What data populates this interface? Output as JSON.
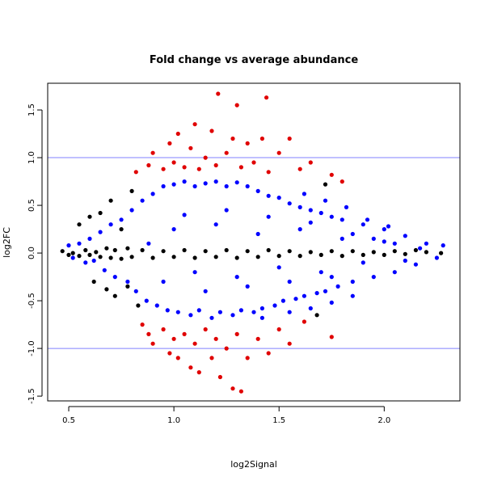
{
  "chart_data": {
    "type": "scatter",
    "title": "Fold change vs average abundance",
    "xlabel": "log2Signal",
    "ylabel": "log2FC",
    "xlim": [
      0.4,
      2.36
    ],
    "ylim": [
      -1.55,
      1.78
    ],
    "x_ticks": [
      {
        "value": 0.5,
        "label": "0.5"
      },
      {
        "value": 1.0,
        "label": "1.0"
      },
      {
        "value": 1.5,
        "label": "1.5"
      },
      {
        "value": 2.0,
        "label": "2.0"
      }
    ],
    "y_ticks": [
      {
        "value": -1.5,
        "label": "-1.5"
      },
      {
        "value": -1.0,
        "label": "-1.0"
      },
      {
        "value": -0.5,
        "label": "-0.5"
      },
      {
        "value": 0.0,
        "label": "0.0"
      },
      {
        "value": 0.5,
        "label": "0.5"
      },
      {
        "value": 1.0,
        "label": "1.0"
      },
      {
        "value": 1.5,
        "label": "1.5"
      }
    ],
    "reference_lines": [
      {
        "y": 1.0,
        "color": "#8080ff"
      },
      {
        "y": -1.0,
        "color": "#8080ff"
      }
    ],
    "grid": false,
    "legend": false,
    "series": [
      {
        "color": "#0000ff",
        "points": [
          [
            0.5,
            0.08
          ],
          [
            0.52,
            -0.05
          ],
          [
            0.55,
            0.1
          ],
          [
            0.58,
            -0.1
          ],
          [
            0.6,
            0.15
          ],
          [
            0.62,
            -0.08
          ],
          [
            0.65,
            0.22
          ],
          [
            0.67,
            -0.18
          ],
          [
            0.7,
            0.3
          ],
          [
            0.72,
            -0.25
          ],
          [
            0.75,
            0.35
          ],
          [
            0.78,
            -0.3
          ],
          [
            0.8,
            0.45
          ],
          [
            0.82,
            -0.4
          ],
          [
            0.85,
            0.55
          ],
          [
            0.87,
            -0.5
          ],
          [
            0.9,
            0.62
          ],
          [
            0.92,
            -0.55
          ],
          [
            0.95,
            0.7
          ],
          [
            0.97,
            -0.6
          ],
          [
            1.0,
            0.72
          ],
          [
            1.02,
            -0.62
          ],
          [
            1.05,
            0.75
          ],
          [
            1.08,
            -0.65
          ],
          [
            1.1,
            0.7
          ],
          [
            1.12,
            -0.6
          ],
          [
            1.15,
            0.73
          ],
          [
            1.18,
            -0.68
          ],
          [
            1.2,
            0.75
          ],
          [
            1.22,
            -0.62
          ],
          [
            1.25,
            0.7
          ],
          [
            1.28,
            -0.65
          ],
          [
            1.3,
            0.74
          ],
          [
            1.32,
            -0.6
          ],
          [
            1.35,
            0.7
          ],
          [
            1.38,
            -0.62
          ],
          [
            1.4,
            0.65
          ],
          [
            1.42,
            -0.58
          ],
          [
            1.45,
            0.6
          ],
          [
            1.48,
            -0.55
          ],
          [
            1.5,
            0.58
          ],
          [
            1.52,
            -0.5
          ],
          [
            1.55,
            0.52
          ],
          [
            1.58,
            -0.48
          ],
          [
            1.6,
            0.48
          ],
          [
            1.62,
            -0.45
          ],
          [
            1.65,
            0.45
          ],
          [
            1.68,
            -0.42
          ],
          [
            1.7,
            0.42
          ],
          [
            1.72,
            -0.4
          ],
          [
            1.75,
            0.38
          ],
          [
            1.78,
            -0.35
          ],
          [
            1.8,
            0.35
          ],
          [
            1.85,
            -0.3
          ],
          [
            1.9,
            0.3
          ],
          [
            1.95,
            -0.25
          ],
          [
            2.0,
            0.25
          ],
          [
            2.05,
            -0.2
          ],
          [
            2.1,
            0.18
          ],
          [
            2.15,
            -0.12
          ],
          [
            2.2,
            0.1
          ],
          [
            2.25,
            -0.05
          ],
          [
            2.28,
            0.08
          ],
          [
            0.88,
            0.1
          ],
          [
            1.0,
            0.25
          ],
          [
            1.1,
            -0.2
          ],
          [
            1.2,
            0.3
          ],
          [
            1.3,
            -0.25
          ],
          [
            1.4,
            0.2
          ],
          [
            1.5,
            -0.15
          ],
          [
            1.6,
            0.25
          ],
          [
            1.7,
            -0.2
          ],
          [
            1.8,
            0.15
          ],
          [
            1.9,
            -0.1
          ],
          [
            2.0,
            0.12
          ],
          [
            0.95,
            -0.3
          ],
          [
            1.05,
            0.4
          ],
          [
            1.15,
            -0.4
          ],
          [
            1.25,
            0.45
          ],
          [
            1.35,
            -0.35
          ],
          [
            1.45,
            0.38
          ],
          [
            1.55,
            -0.3
          ],
          [
            1.65,
            0.32
          ],
          [
            1.75,
            -0.25
          ],
          [
            1.85,
            0.2
          ],
          [
            1.95,
            0.15
          ],
          [
            2.05,
            0.1
          ],
          [
            2.1,
            -0.08
          ],
          [
            2.17,
            0.05
          ],
          [
            1.62,
            0.62
          ],
          [
            1.72,
            0.55
          ],
          [
            1.82,
            0.48
          ],
          [
            1.92,
            0.35
          ],
          [
            2.02,
            0.28
          ],
          [
            1.42,
            -0.68
          ],
          [
            1.55,
            -0.62
          ],
          [
            1.65,
            -0.58
          ],
          [
            1.75,
            -0.52
          ],
          [
            1.85,
            -0.45
          ]
        ]
      },
      {
        "color": "#e00000",
        "points": [
          [
            0.82,
            0.85
          ],
          [
            0.88,
            0.92
          ],
          [
            0.9,
            1.05
          ],
          [
            0.95,
            0.88
          ],
          [
            0.98,
            1.15
          ],
          [
            1.0,
            0.95
          ],
          [
            1.02,
            1.25
          ],
          [
            1.05,
            0.9
          ],
          [
            1.08,
            1.1
          ],
          [
            1.1,
            1.35
          ],
          [
            1.12,
            0.88
          ],
          [
            1.15,
            1.0
          ],
          [
            1.18,
            1.28
          ],
          [
            1.2,
            0.92
          ],
          [
            1.21,
            1.67
          ],
          [
            1.25,
            1.05
          ],
          [
            1.28,
            1.2
          ],
          [
            1.3,
            1.55
          ],
          [
            1.32,
            0.9
          ],
          [
            1.35,
            1.15
          ],
          [
            1.38,
            0.95
          ],
          [
            1.42,
            1.2
          ],
          [
            1.44,
            1.63
          ],
          [
            1.45,
            0.85
          ],
          [
            1.5,
            1.05
          ],
          [
            1.55,
            1.2
          ],
          [
            1.6,
            0.88
          ],
          [
            1.65,
            0.95
          ],
          [
            1.75,
            0.82
          ],
          [
            1.8,
            0.75
          ],
          [
            0.85,
            -0.75
          ],
          [
            0.88,
            -0.85
          ],
          [
            0.9,
            -0.95
          ],
          [
            0.95,
            -0.8
          ],
          [
            0.98,
            -1.05
          ],
          [
            1.0,
            -0.9
          ],
          [
            1.02,
            -1.1
          ],
          [
            1.05,
            -0.85
          ],
          [
            1.08,
            -1.2
          ],
          [
            1.1,
            -0.95
          ],
          [
            1.12,
            -1.25
          ],
          [
            1.15,
            -0.8
          ],
          [
            1.18,
            -1.1
          ],
          [
            1.2,
            -0.9
          ],
          [
            1.22,
            -1.3
          ],
          [
            1.25,
            -1.0
          ],
          [
            1.28,
            -1.42
          ],
          [
            1.3,
            -0.85
          ],
          [
            1.32,
            -1.45
          ],
          [
            1.35,
            -1.1
          ],
          [
            1.4,
            -0.9
          ],
          [
            1.45,
            -1.05
          ],
          [
            1.5,
            -0.8
          ],
          [
            1.55,
            -0.95
          ],
          [
            1.62,
            -0.72
          ],
          [
            1.75,
            -0.88
          ]
        ]
      },
      {
        "color": "#000000",
        "points": [
          [
            0.47,
            0.02
          ],
          [
            0.5,
            -0.02
          ],
          [
            0.52,
            0.0
          ],
          [
            0.55,
            -0.03
          ],
          [
            0.58,
            0.03
          ],
          [
            0.6,
            -0.02
          ],
          [
            0.63,
            0.01
          ],
          [
            0.65,
            -0.04
          ],
          [
            0.68,
            0.05
          ],
          [
            0.7,
            -0.05
          ],
          [
            0.72,
            0.03
          ],
          [
            0.75,
            -0.06
          ],
          [
            0.78,
            0.05
          ],
          [
            0.8,
            -0.04
          ],
          [
            0.85,
            0.03
          ],
          [
            0.9,
            -0.05
          ],
          [
            0.95,
            0.02
          ],
          [
            1.0,
            -0.04
          ],
          [
            1.05,
            0.03
          ],
          [
            1.1,
            -0.05
          ],
          [
            1.15,
            0.02
          ],
          [
            1.2,
            -0.04
          ],
          [
            1.25,
            0.03
          ],
          [
            1.3,
            -0.05
          ],
          [
            1.35,
            0.02
          ],
          [
            1.4,
            -0.04
          ],
          [
            1.45,
            0.03
          ],
          [
            1.5,
            -0.03
          ],
          [
            1.55,
            0.02
          ],
          [
            1.6,
            -0.03
          ],
          [
            1.65,
            0.01
          ],
          [
            1.7,
            -0.02
          ],
          [
            1.75,
            0.02
          ],
          [
            1.8,
            -0.03
          ],
          [
            1.85,
            0.02
          ],
          [
            1.9,
            -0.02
          ],
          [
            1.95,
            0.01
          ],
          [
            2.0,
            -0.02
          ],
          [
            2.05,
            0.02
          ],
          [
            2.1,
            -0.01
          ],
          [
            2.15,
            0.03
          ],
          [
            2.2,
            0.01
          ],
          [
            2.27,
            0.0
          ],
          [
            0.55,
            0.3
          ],
          [
            0.6,
            0.38
          ],
          [
            0.65,
            0.42
          ],
          [
            0.62,
            -0.3
          ],
          [
            0.68,
            -0.38
          ],
          [
            0.7,
            0.55
          ],
          [
            0.72,
            -0.45
          ],
          [
            0.75,
            0.25
          ],
          [
            0.78,
            -0.35
          ],
          [
            1.72,
            0.72
          ],
          [
            1.68,
            -0.65
          ],
          [
            0.8,
            0.65
          ],
          [
            0.83,
            -0.55
          ]
        ]
      }
    ]
  }
}
